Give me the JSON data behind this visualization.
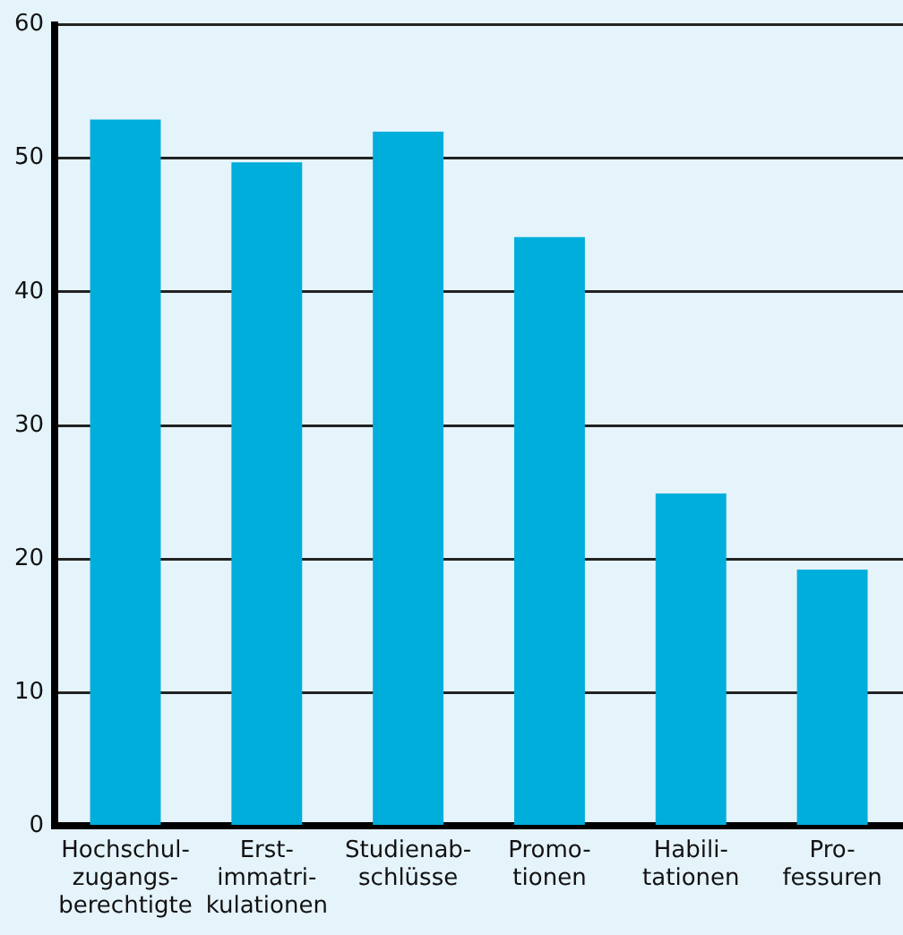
{
  "chart_data": {
    "type": "bar",
    "categories": [
      "Hochschul-\nzugangs-\nberechtigte",
      "Erst-\nimmatri-\nkulationen",
      "Studienab-\nschlüsse",
      "Promo-\ntionen",
      "Habili-\ntationen",
      "Pro-\nfessuren"
    ],
    "values": [
      52.9,
      49.7,
      52.0,
      44.1,
      24.9,
      19.2
    ],
    "color": "#00aedb",
    "ylim": [
      0,
      60
    ],
    "yticks": [
      0,
      10,
      20,
      30,
      40,
      50,
      60
    ],
    "grid": "y",
    "legend": false
  }
}
